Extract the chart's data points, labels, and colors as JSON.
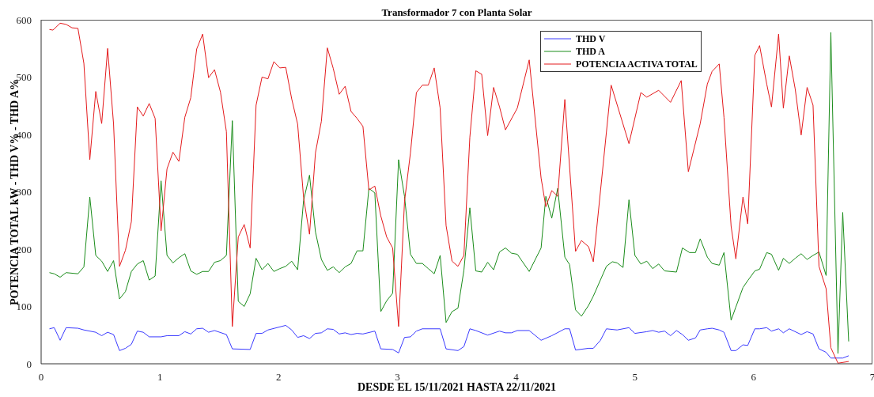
{
  "chart_data": {
    "type": "line",
    "title": "Transformador 7 con Planta Solar",
    "xlabel": "DESDE EL 15/11/2021 HASTA 22/11/2021",
    "ylabel": "POTENCIA TOTAL kW - THD V% - THD A%",
    "xlim": [
      0,
      7
    ],
    "xticks": [
      0,
      1,
      2,
      3,
      4,
      5,
      6,
      7
    ],
    "ylim": [
      0,
      600
    ],
    "yticks": [
      0,
      100,
      200,
      300,
      400,
      500,
      600
    ],
    "grid": false,
    "legend": "top right",
    "marker": "none",
    "line_style": "solid",
    "series": [
      {
        "name": "THD V",
        "color": "#3a3aff",
        "x": [
          0.07,
          0.11,
          0.16,
          0.21,
          0.31,
          0.36,
          0.46,
          0.51,
          0.56,
          0.61,
          0.66,
          0.71,
          0.76,
          0.81,
          0.86,
          0.91,
          1.01,
          1.06,
          1.16,
          1.21,
          1.26,
          1.31,
          1.36,
          1.41,
          1.46,
          1.56,
          1.61,
          1.76,
          1.81,
          1.86,
          1.91,
          2.06,
          2.11,
          2.16,
          2.21,
          2.26,
          2.31,
          2.36,
          2.41,
          2.46,
          2.51,
          2.56,
          2.61,
          2.66,
          2.71,
          2.81,
          2.86,
          2.96,
          3.01,
          3.06,
          3.11,
          3.16,
          3.21,
          3.36,
          3.41,
          3.51,
          3.56,
          3.61,
          3.66,
          3.76,
          3.86,
          3.91,
          3.96,
          4.01,
          4.11,
          4.21,
          4.3,
          4.41,
          4.45,
          4.5,
          4.61,
          4.65,
          4.71,
          4.76,
          4.85,
          4.95,
          5.0,
          5.1,
          5.15,
          5.2,
          5.25,
          5.3,
          5.35,
          5.4,
          5.45,
          5.51,
          5.55,
          5.61,
          5.65,
          5.71,
          5.75,
          5.81,
          5.85,
          5.91,
          5.95,
          6.01,
          6.05,
          6.11,
          6.15,
          6.21,
          6.25,
          6.3,
          6.4,
          6.45,
          6.5,
          6.55,
          6.61,
          6.65,
          6.75,
          6.8
        ],
        "values": [
          61,
          63,
          41,
          63,
          62,
          59,
          55,
          49,
          55,
          51,
          23,
          27,
          34,
          57,
          55,
          47,
          47,
          49,
          49,
          56,
          52,
          61,
          62,
          55,
          58,
          51,
          26,
          25,
          53,
          53,
          59,
          67,
          59,
          46,
          49,
          44,
          53,
          54,
          61,
          60,
          52,
          54,
          51,
          53,
          52,
          57,
          26,
          25,
          19,
          46,
          47,
          57,
          61,
          61,
          26,
          23,
          30,
          61,
          58,
          50,
          57,
          54,
          54,
          58,
          58,
          41,
          49,
          61,
          61,
          24,
          27,
          27,
          41,
          61,
          59,
          63,
          53,
          56,
          58,
          55,
          57,
          49,
          58,
          51,
          41,
          45,
          59,
          61,
          62,
          59,
          55,
          23,
          23,
          33,
          32,
          61,
          61,
          63,
          57,
          61,
          54,
          61,
          51,
          56,
          52,
          26,
          20,
          10,
          10,
          14
        ]
      },
      {
        "name": "THD A",
        "color": "#1a8c1a",
        "x": [
          0.07,
          0.11,
          0.16,
          0.21,
          0.31,
          0.36,
          0.41,
          0.46,
          0.51,
          0.56,
          0.61,
          0.66,
          0.71,
          0.76,
          0.81,
          0.86,
          0.91,
          0.96,
          1.01,
          1.06,
          1.11,
          1.16,
          1.21,
          1.26,
          1.31,
          1.36,
          1.41,
          1.46,
          1.51,
          1.56,
          1.61,
          1.66,
          1.71,
          1.76,
          1.81,
          1.86,
          1.91,
          1.96,
          2.01,
          2.06,
          2.11,
          2.16,
          2.21,
          2.26,
          2.31,
          2.36,
          2.41,
          2.46,
          2.51,
          2.56,
          2.61,
          2.66,
          2.71,
          2.76,
          2.81,
          2.86,
          2.91,
          2.96,
          3.01,
          3.06,
          3.11,
          3.16,
          3.21,
          3.26,
          3.31,
          3.36,
          3.41,
          3.46,
          3.51,
          3.56,
          3.61,
          3.66,
          3.71,
          3.76,
          3.81,
          3.86,
          3.91,
          3.96,
          4.01,
          4.11,
          4.21,
          4.25,
          4.3,
          4.35,
          4.41,
          4.45,
          4.5,
          4.55,
          4.61,
          4.65,
          4.76,
          4.81,
          4.85,
          4.9,
          4.95,
          5.0,
          5.05,
          5.1,
          5.15,
          5.2,
          5.25,
          5.35,
          5.4,
          5.46,
          5.51,
          5.55,
          5.61,
          5.65,
          5.71,
          5.75,
          5.81,
          5.85,
          5.91,
          5.95,
          6.01,
          6.05,
          6.11,
          6.15,
          6.21,
          6.25,
          6.3,
          6.35,
          6.4,
          6.45,
          6.5,
          6.55,
          6.61,
          6.65,
          6.71,
          6.75,
          6.8
        ],
        "values": [
          159,
          157,
          151,
          159,
          157,
          169,
          291,
          189,
          179,
          161,
          180,
          113,
          126,
          161,
          174,
          180,
          146,
          153,
          319,
          189,
          176,
          185,
          192,
          162,
          156,
          161,
          161,
          177,
          180,
          189,
          424,
          109,
          100,
          122,
          184,
          164,
          175,
          161,
          166,
          170,
          179,
          164,
          285,
          329,
          230,
          182,
          163,
          169,
          159,
          169,
          175,
          197,
          197,
          306,
          298,
          91,
          110,
          123,
          356,
          292,
          191,
          175,
          175,
          166,
          157,
          189,
          72,
          91,
          97,
          163,
          272,
          162,
          160,
          177,
          164,
          195,
          202,
          193,
          191,
          161,
          202,
          292,
          254,
          306,
          186,
          173,
          94,
          83,
          102,
          118,
          170,
          178,
          176,
          168,
          286,
          189,
          174,
          179,
          166,
          174,
          162,
          160,
          202,
          194,
          194,
          218,
          186,
          175,
          172,
          194,
          76,
          99,
          133,
          145,
          162,
          165,
          194,
          191,
          163,
          184,
          175,
          184,
          192,
          182,
          189,
          195,
          154,
          578,
          18,
          264,
          39
        ]
      },
      {
        "name": "POTENCIA ACTIVA TOTAL",
        "color": "#e41a1c",
        "x": [
          0.07,
          0.1,
          0.16,
          0.21,
          0.26,
          0.31,
          0.36,
          0.41,
          0.46,
          0.51,
          0.56,
          0.61,
          0.66,
          0.71,
          0.76,
          0.81,
          0.86,
          0.91,
          0.96,
          1.01,
          1.06,
          1.11,
          1.16,
          1.21,
          1.26,
          1.31,
          1.36,
          1.41,
          1.46,
          1.51,
          1.56,
          1.61,
          1.66,
          1.71,
          1.76,
          1.81,
          1.86,
          1.91,
          1.96,
          2.01,
          2.06,
          2.11,
          2.16,
          2.21,
          2.26,
          2.31,
          2.36,
          2.41,
          2.46,
          2.51,
          2.56,
          2.61,
          2.66,
          2.71,
          2.76,
          2.81,
          2.86,
          2.91,
          2.96,
          3.01,
          3.06,
          3.11,
          3.16,
          3.21,
          3.26,
          3.31,
          3.36,
          3.41,
          3.46,
          3.51,
          3.56,
          3.61,
          3.66,
          3.71,
          3.76,
          3.81,
          3.86,
          3.91,
          4.01,
          4.11,
          4.21,
          4.25,
          4.3,
          4.35,
          4.41,
          4.45,
          4.5,
          4.55,
          4.61,
          4.65,
          4.75,
          4.8,
          4.85,
          4.91,
          4.95,
          5.05,
          5.1,
          5.15,
          5.2,
          5.25,
          5.3,
          5.35,
          5.39,
          5.45,
          5.55,
          5.61,
          5.65,
          5.71,
          5.75,
          5.81,
          5.85,
          5.91,
          5.95,
          6.01,
          6.05,
          6.11,
          6.15,
          6.21,
          6.25,
          6.3,
          6.35,
          6.4,
          6.45,
          6.5,
          6.55,
          6.61,
          6.65,
          6.71,
          6.8
        ],
        "values": [
          583,
          582,
          594,
          592,
          586,
          585,
          524,
          356,
          475,
          419,
          550,
          418,
          170,
          198,
          248,
          448,
          432,
          454,
          428,
          232,
          340,
          369,
          353,
          430,
          464,
          549,
          575,
          499,
          513,
          474,
          405,
          65,
          221,
          243,
          202,
          451,
          500,
          497,
          527,
          516,
          517,
          462,
          418,
          290,
          226,
          368,
          423,
          551,
          515,
          470,
          484,
          440,
          428,
          414,
          303,
          310,
          258,
          221,
          202,
          65,
          283,
          368,
          473,
          486,
          486,
          516,
          446,
          241,
          179,
          170,
          189,
          395,
          511,
          505,
          398,
          482,
          448,
          408,
          446,
          530,
          324,
          274,
          302,
          292,
          461,
          null,
          196,
          215,
          204,
          178,
          null,
          486,
          null,
          null,
          384,
          473,
          465,
          null,
          477,
          null,
          456,
          null,
          494,
          335,
          419,
          488,
          510,
          523,
          430,
          240,
          183,
          291,
          244,
          538,
          555,
          488,
          448,
          575,
          446,
          537,
          479,
          399,
          482,
          451,
          170,
          131,
          28,
          1,
          4
        ]
      }
    ]
  }
}
